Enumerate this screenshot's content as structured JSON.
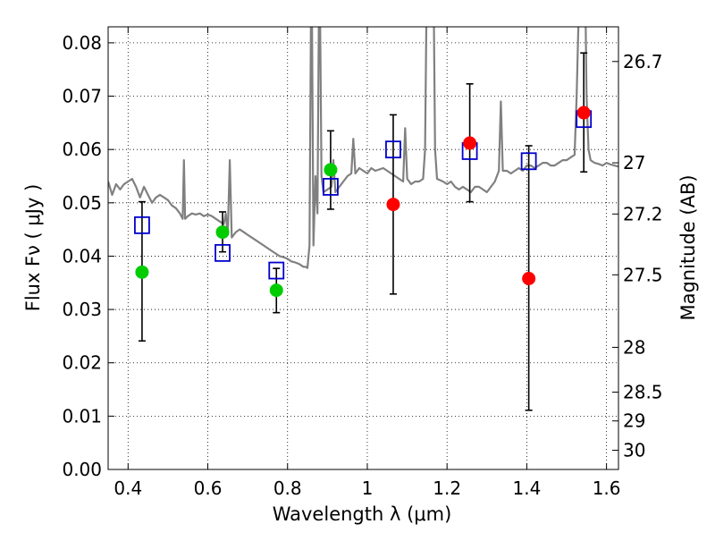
{
  "chart_data": {
    "type": "scatter",
    "xlabel": "Wavelength  λ (μm)",
    "ylabel": "Flux  Fν  ( μJy )",
    "ylabel_right": "Magnitude (AB)",
    "xlim": [
      0.35,
      1.63
    ],
    "ylim": [
      0.0,
      0.083
    ],
    "grid": true,
    "x_ticks": [
      0.4,
      0.6,
      0.8,
      1.0,
      1.2,
      1.4,
      1.6
    ],
    "x_tick_labels": [
      "0.4",
      "0.6",
      "0.8",
      "1",
      "1.2",
      "1.4",
      "1.6"
    ],
    "y_ticks": [
      0.0,
      0.01,
      0.02,
      0.03,
      0.04,
      0.05,
      0.06,
      0.07,
      0.08
    ],
    "y_tick_labels": [
      "0.00",
      "0.01",
      "0.02",
      "0.03",
      "0.04",
      "0.05",
      "0.06",
      "0.07",
      "0.08"
    ],
    "right_ticks": [
      {
        "flux": 0.0765,
        "label": "26.7"
      },
      {
        "flux": 0.0575,
        "label": "27"
      },
      {
        "flux": 0.0479,
        "label": "27.2"
      },
      {
        "flux": 0.0365,
        "label": "27.5"
      },
      {
        "flux": 0.0229,
        "label": "28"
      },
      {
        "flux": 0.0145,
        "label": "28.5"
      },
      {
        "flux": 0.0091,
        "label": "29"
      },
      {
        "flux": 0.0036,
        "label": "30"
      }
    ],
    "series": [
      {
        "kind": "model_spectrum",
        "color": "#808080",
        "points": [
          [
            0.35,
            0.054
          ],
          [
            0.36,
            0.0515
          ],
          [
            0.37,
            0.0535
          ],
          [
            0.38,
            0.0525
          ],
          [
            0.39,
            0.0535
          ],
          [
            0.4,
            0.054
          ],
          [
            0.41,
            0.0545
          ],
          [
            0.42,
            0.053
          ],
          [
            0.43,
            0.051
          ],
          [
            0.44,
            0.053
          ],
          [
            0.45,
            0.0515
          ],
          [
            0.46,
            0.05
          ],
          [
            0.47,
            0.051
          ],
          [
            0.48,
            0.0515
          ],
          [
            0.49,
            0.051
          ],
          [
            0.5,
            0.0505
          ],
          [
            0.51,
            0.0495
          ],
          [
            0.52,
            0.049
          ],
          [
            0.53,
            0.048
          ],
          [
            0.537,
            0.047
          ],
          [
            0.54,
            0.058
          ],
          [
            0.543,
            0.047
          ],
          [
            0.55,
            0.0475
          ],
          [
            0.56,
            0.048
          ],
          [
            0.57,
            0.0478
          ],
          [
            0.58,
            0.048
          ],
          [
            0.59,
            0.0475
          ],
          [
            0.6,
            0.0478
          ],
          [
            0.61,
            0.0475
          ],
          [
            0.62,
            0.047
          ],
          [
            0.63,
            0.0465
          ],
          [
            0.64,
            0.046
          ],
          [
            0.645,
            0.048
          ],
          [
            0.65,
            0.044
          ],
          [
            0.655,
            0.058
          ],
          [
            0.66,
            0.0435
          ],
          [
            0.67,
            0.0445
          ],
          [
            0.68,
            0.045
          ],
          [
            0.69,
            0.0445
          ],
          [
            0.7,
            0.044
          ],
          [
            0.71,
            0.0435
          ],
          [
            0.72,
            0.043
          ],
          [
            0.73,
            0.0425
          ],
          [
            0.74,
            0.042
          ],
          [
            0.75,
            0.0415
          ],
          [
            0.76,
            0.041
          ],
          [
            0.77,
            0.0405
          ],
          [
            0.78,
            0.04
          ],
          [
            0.79,
            0.0398
          ],
          [
            0.8,
            0.0395
          ],
          [
            0.81,
            0.039
          ],
          [
            0.82,
            0.0388
          ],
          [
            0.83,
            0.0385
          ],
          [
            0.84,
            0.038
          ],
          [
            0.845,
            0.038
          ],
          [
            0.85,
            0.0378
          ],
          [
            0.855,
            0.042
          ],
          [
            0.86,
            0.1
          ],
          [
            0.865,
            0.042
          ],
          [
            0.87,
            0.055
          ],
          [
            0.875,
            0.048
          ],
          [
            0.88,
            0.1
          ],
          [
            0.885,
            0.055
          ],
          [
            0.89,
            0.052
          ],
          [
            0.9,
            0.0525
          ],
          [
            0.91,
            0.053
          ],
          [
            0.915,
            0.058
          ],
          [
            0.92,
            0.052
          ],
          [
            0.93,
            0.053
          ],
          [
            0.94,
            0.054
          ],
          [
            0.95,
            0.055
          ],
          [
            0.96,
            0.0555
          ],
          [
            0.965,
            0.062
          ],
          [
            0.97,
            0.0555
          ],
          [
            0.98,
            0.0565
          ],
          [
            0.99,
            0.056
          ],
          [
            1.0,
            0.0555
          ],
          [
            1.01,
            0.0565
          ],
          [
            1.02,
            0.056
          ],
          [
            1.04,
            0.0565
          ],
          [
            1.05,
            0.056
          ],
          [
            1.06,
            0.0555
          ],
          [
            1.07,
            0.055
          ],
          [
            1.08,
            0.0545
          ],
          [
            1.09,
            0.054
          ],
          [
            1.095,
            0.064
          ],
          [
            1.1,
            0.0545
          ],
          [
            1.11,
            0.0535
          ],
          [
            1.12,
            0.054
          ],
          [
            1.13,
            0.054
          ],
          [
            1.14,
            0.0545
          ],
          [
            1.145,
            0.06
          ],
          [
            1.15,
            0.098
          ],
          [
            1.155,
            0.1
          ],
          [
            1.165,
            0.1
          ],
          [
            1.17,
            0.06
          ],
          [
            1.175,
            0.0545
          ],
          [
            1.19,
            0.054
          ],
          [
            1.2,
            0.0535
          ],
          [
            1.21,
            0.054
          ],
          [
            1.22,
            0.053
          ],
          [
            1.23,
            0.0525
          ],
          [
            1.24,
            0.053
          ],
          [
            1.25,
            0.0525
          ],
          [
            1.26,
            0.052
          ],
          [
            1.27,
            0.053
          ],
          [
            1.28,
            0.053
          ],
          [
            1.29,
            0.0525
          ],
          [
            1.3,
            0.052
          ],
          [
            1.31,
            0.053
          ],
          [
            1.32,
            0.054
          ],
          [
            1.33,
            0.056
          ],
          [
            1.335,
            0.069
          ],
          [
            1.34,
            0.056
          ],
          [
            1.35,
            0.056
          ],
          [
            1.36,
            0.0555
          ],
          [
            1.37,
            0.056
          ],
          [
            1.38,
            0.0565
          ],
          [
            1.39,
            0.056
          ],
          [
            1.4,
            0.057
          ],
          [
            1.41,
            0.057
          ],
          [
            1.42,
            0.0565
          ],
          [
            1.43,
            0.057
          ],
          [
            1.44,
            0.0575
          ],
          [
            1.45,
            0.0575
          ],
          [
            1.46,
            0.057
          ],
          [
            1.47,
            0.057
          ],
          [
            1.48,
            0.0575
          ],
          [
            1.49,
            0.058
          ],
          [
            1.5,
            0.058
          ],
          [
            1.51,
            0.0585
          ],
          [
            1.52,
            0.059
          ],
          [
            1.525,
            0.07
          ],
          [
            1.53,
            0.085
          ],
          [
            1.535,
            0.1
          ],
          [
            1.545,
            0.1
          ],
          [
            1.55,
            0.07
          ],
          [
            1.555,
            0.06
          ],
          [
            1.56,
            0.058
          ],
          [
            1.57,
            0.0575
          ],
          [
            1.58,
            0.0573
          ],
          [
            1.59,
            0.057
          ],
          [
            1.6,
            0.0575
          ],
          [
            1.61,
            0.0572
          ],
          [
            1.62,
            0.057
          ],
          [
            1.63,
            0.0568
          ]
        ]
      },
      {
        "kind": "model_photometry",
        "marker": "open-square",
        "color": "#0000cc",
        "points": [
          [
            0.435,
            0.0458
          ],
          [
            0.637,
            0.0406
          ],
          [
            0.772,
            0.0373
          ],
          [
            0.908,
            0.053
          ],
          [
            1.065,
            0.06
          ],
          [
            1.257,
            0.0597
          ],
          [
            1.405,
            0.0578
          ],
          [
            1.543,
            0.0657
          ]
        ]
      },
      {
        "kind": "detections",
        "marker": "filled-circle",
        "color": "#00cc00",
        "points": [
          [
            0.435,
            0.037
          ],
          [
            0.637,
            0.0445
          ],
          [
            0.772,
            0.0336
          ],
          [
            0.908,
            0.0562
          ]
        ]
      },
      {
        "kind": "upper_limits",
        "marker": "filled-circle",
        "color": "#ff0000",
        "points": [
          [
            1.065,
            0.0497
          ],
          [
            1.257,
            0.0612
          ],
          [
            1.405,
            0.0358
          ],
          [
            1.543,
            0.0669
          ]
        ]
      }
    ],
    "error_bars": [
      {
        "x": 0.435,
        "low": 0.0241,
        "high": 0.0502
      },
      {
        "x": 0.637,
        "low": 0.0408,
        "high": 0.0483
      },
      {
        "x": 0.772,
        "low": 0.0294,
        "high": 0.0377
      },
      {
        "x": 0.908,
        "low": 0.0488,
        "high": 0.0635
      },
      {
        "x": 1.065,
        "low": 0.0329,
        "high": 0.0665
      },
      {
        "x": 1.257,
        "low": 0.0502,
        "high": 0.0723
      },
      {
        "x": 1.405,
        "low": 0.0111,
        "high": 0.0607
      },
      {
        "x": 1.543,
        "low": 0.0558,
        "high": 0.0781
      }
    ]
  }
}
